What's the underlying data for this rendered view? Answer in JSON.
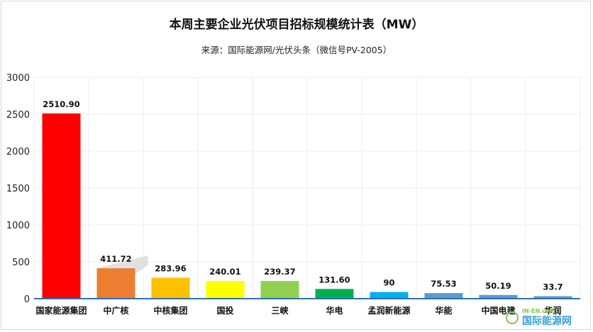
{
  "chart_data": {
    "type": "bar",
    "title": "本周主要企业光伏项目招标规模统计表（MW）",
    "subtitle": "来源：国际能源网/光伏头条（微信号PV-2005）",
    "categories": [
      "国家能源集团",
      "中广核",
      "中核集团",
      "国投",
      "三峡",
      "华电",
      "孟润新能源",
      "华能",
      "中国电建",
      "华润"
    ],
    "values": [
      2510.9,
      411.72,
      283.96,
      240.01,
      239.37,
      131.6,
      90,
      75.53,
      50.19,
      33.7
    ],
    "value_labels": [
      "2510.90",
      "411.72",
      "283.96",
      "240.01",
      "239.37",
      "131.60",
      "90",
      "75.53",
      "50.19",
      "33.7"
    ],
    "colors": [
      "#ff0000",
      "#ed7d31",
      "#ffc000",
      "#ffff00",
      "#92d050",
      "#00b050",
      "#00b0f0",
      "#5b9bd5",
      "#5b9bd5",
      "#5b9bd5"
    ],
    "ylim": [
      0,
      3000
    ],
    "yticks": [
      "0",
      "500",
      "1000",
      "1500",
      "2000",
      "2500",
      "3000"
    ],
    "xlabel": "",
    "ylabel": "",
    "grid": true,
    "legend": "none"
  },
  "watermark": {
    "text": "国际能源网",
    "small": "IN-EN.com"
  }
}
